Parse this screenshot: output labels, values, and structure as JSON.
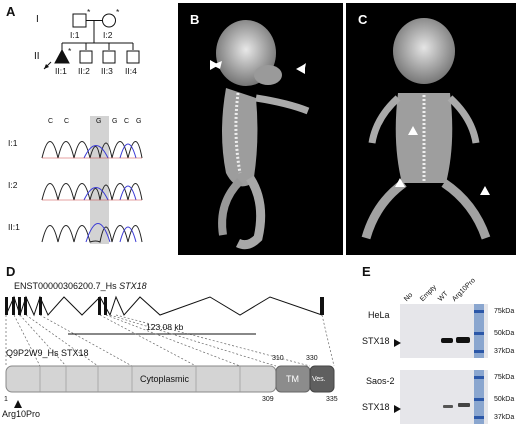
{
  "panels": {
    "a": "A",
    "b": "B",
    "c": "C",
    "d": "D",
    "e": "E"
  },
  "pedigree": {
    "gen1": "I",
    "gen2": "II",
    "ids": [
      "I:1",
      "I:2",
      "II:1",
      "II:2",
      "II:3",
      "II:4"
    ],
    "marks": {
      "carrier": "*",
      "proband": "P"
    }
  },
  "chromatograms": {
    "rows": [
      "I:1",
      "I:2",
      "II:1"
    ],
    "bases": [
      "C",
      "C",
      "G",
      "G",
      "C",
      "G"
    ]
  },
  "gene": {
    "transcript_id": "ENST00000306200.7_Hs",
    "gene_symbol": "STX18",
    "length": "123.08 kb",
    "protein_id": "Q9P2W9_Hs STX18",
    "domain_cytoplasmic": "Cytoplasmic",
    "domain_tm": "TM",
    "domain_ves": "Ves.",
    "pos_1": "1",
    "pos_309": "309",
    "pos_310": "310",
    "pos_330": "330",
    "pos_335": "335",
    "variant": "Arg10Pro"
  },
  "blot": {
    "lanes": [
      "No",
      "Empty",
      "WT",
      "Arg10Pro"
    ],
    "cell_lines": [
      "HeLa",
      "Saos-2"
    ],
    "target": "STX18",
    "markers": [
      "75kDa",
      "50kDa",
      "37kDa"
    ]
  }
}
